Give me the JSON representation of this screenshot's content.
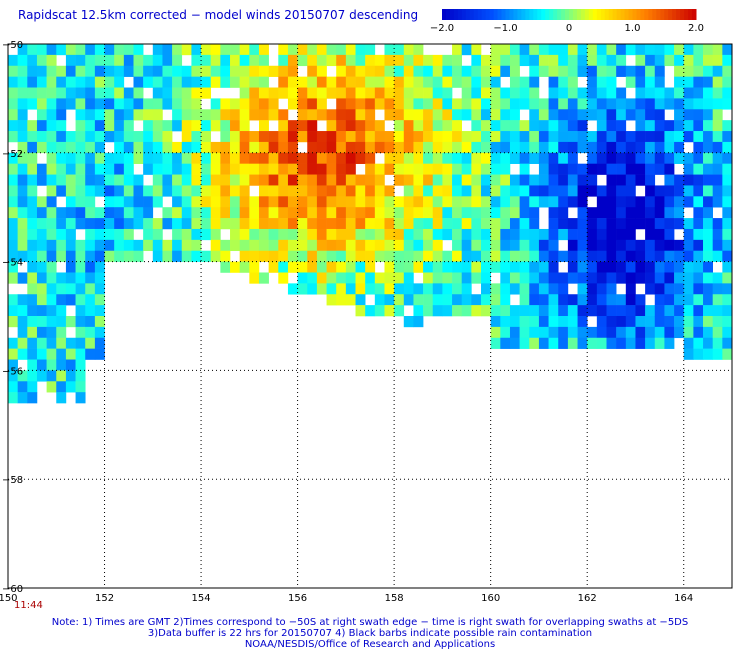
{
  "title": "Rapidscat 12.5km corrected − model winds 20150707 descending",
  "time_label": "11:44",
  "notes": [
    "Note: 1) Times are GMT 2)Times correspond to −50S at right swath edge − time is right swath for overlapping swaths at −5DS",
    "3)Data buffer is 22 hrs for 20150707 4) Black barbs indicate possible rain contamination",
    "NOAA/NESDIS/Office of Research and Applications"
  ],
  "colorbar": {
    "ticks": [
      "−2.0",
      "−1.0",
      "0",
      "1.0",
      "2.0"
    ],
    "values": [
      -2,
      -1,
      0,
      1,
      2
    ],
    "colors": [
      "#0000c8",
      "#0050ff",
      "#00ffff",
      "#ffff00",
      "#ff8000",
      "#cc0000"
    ]
  },
  "chart_data": {
    "type": "heatmap",
    "title": "Rapidscat 12.5km corrected − model winds 20150707 descending",
    "x_ticks": [
      150,
      152,
      154,
      156,
      158,
      160,
      162,
      164
    ],
    "x_tick_labels": [
      "150",
      "152",
      "154",
      "156",
      "158",
      "160",
      "162",
      "164"
    ],
    "y_ticks": [
      -50,
      -52,
      -54,
      -56,
      -58,
      -60
    ],
    "y_tick_labels": [
      "−50",
      "−52",
      "−54",
      "−56",
      "−58",
      "−60"
    ],
    "xlim": [
      150,
      165
    ],
    "ylim": [
      -60,
      -50
    ],
    "grid": true,
    "value_range": [
      -2,
      2
    ],
    "regions": [
      {
        "name": "positive difference core",
        "lon": [
          154,
          159
        ],
        "lat": [
          -54,
          -50
        ],
        "value": 1.8
      },
      {
        "name": "negative difference core",
        "lon": [
          161,
          164.5
        ],
        "lat": [
          -55.5,
          -51
        ],
        "value": -1.8
      },
      {
        "name": "mixed near-zero western swath",
        "lon": [
          150,
          154
        ],
        "lat": [
          -56.5,
          -50
        ],
        "value": -0.3
      }
    ]
  }
}
